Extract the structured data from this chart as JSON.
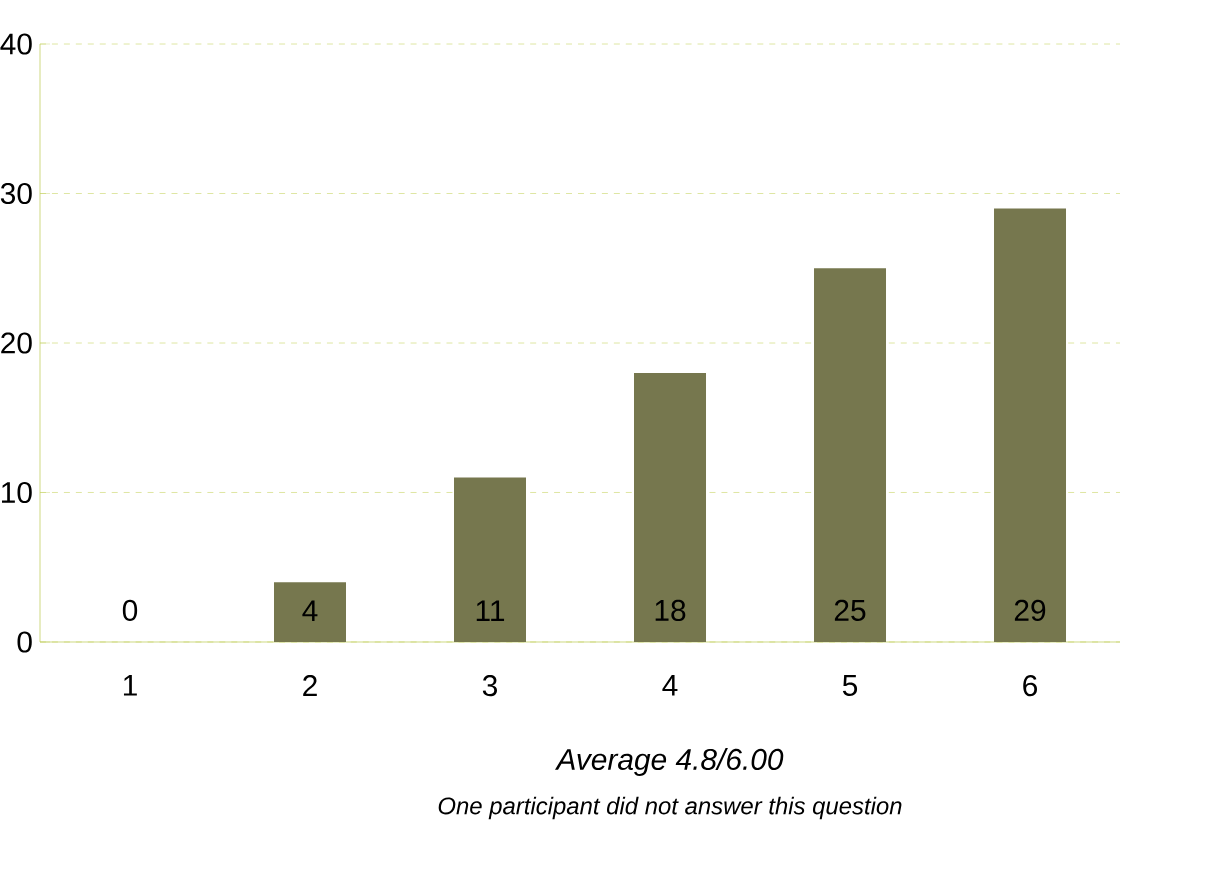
{
  "chart_data": {
    "type": "bar",
    "categories": [
      "1",
      "2",
      "3",
      "4",
      "5",
      "6"
    ],
    "values": [
      0,
      4,
      11,
      18,
      25,
      29
    ],
    "color": "#76774e",
    "ylim": [
      0,
      40
    ],
    "yticks": [
      0,
      10,
      20,
      30,
      40
    ],
    "grid": "y",
    "data_labels": true,
    "annotations": [
      "*Average 4.8/6.00*",
      "*One participant did not answer this question*"
    ]
  }
}
